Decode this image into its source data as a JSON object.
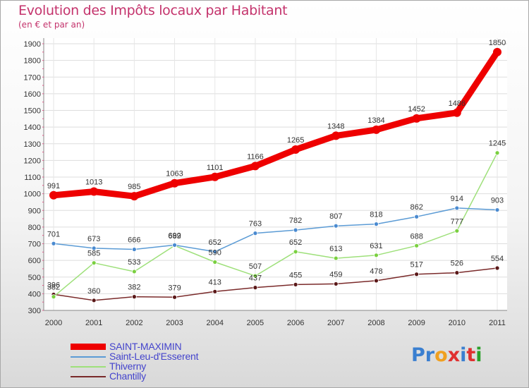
{
  "header": {
    "title": "Evolution des Impôts locaux par Habitant",
    "subtitle": "(en € et par an)"
  },
  "brand": {
    "letters": [
      "P",
      "r",
      "o",
      "x",
      "i",
      "t",
      "i"
    ],
    "colors": [
      "#3a7fd0",
      "#3a7fd0",
      "#f0a020",
      "#e03030",
      "#3a7fd0",
      "#e03030",
      "#2aa02a"
    ]
  },
  "chart_data": {
    "type": "line",
    "x": [
      "2000",
      "2001",
      "2002",
      "2003",
      "2004",
      "2005",
      "2006",
      "2007",
      "2008",
      "2009",
      "2010",
      "2011"
    ],
    "ylim": [
      300,
      1900
    ],
    "yticks": [
      "300",
      "400",
      "500",
      "600",
      "700",
      "800",
      "900",
      "1000",
      "1100",
      "1200",
      "1300",
      "1400",
      "1500",
      "1600",
      "1700",
      "1800",
      "1900"
    ],
    "grid": true,
    "legend_position": "bottom-left",
    "series": [
      {
        "name": "SAINT-MAXIMIN",
        "color": "#ee0000",
        "weight": "bold",
        "values": [
          991,
          1013,
          985,
          1063,
          1101,
          1166,
          1265,
          1348,
          1384,
          1452,
          1486,
          1850
        ],
        "labels": [
          "991",
          "1013",
          "985",
          "1063",
          "1101",
          "1166",
          "1265",
          "1348",
          "1384",
          "1452",
          "1486",
          "1850"
        ]
      },
      {
        "name": "Saint-Leu-d'Esserent",
        "color": "#5b9bd5",
        "weight": "normal",
        "marker": "#4a8ad0",
        "values": [
          701,
          673,
          666,
          692,
          652,
          763,
          782,
          807,
          818,
          862,
          914,
          903
        ],
        "labels": [
          "701",
          "673",
          "666",
          "692",
          "652",
          "763",
          "782",
          "807",
          "818",
          "862",
          "914",
          "903"
        ]
      },
      {
        "name": "Thiverny",
        "color": "#9ee07a",
        "weight": "normal",
        "marker": "#7ad040",
        "values": [
          382,
          585,
          533,
          689,
          590,
          507,
          652,
          613,
          631,
          688,
          777,
          1245
        ],
        "labels": [
          "382",
          "585",
          "533",
          "689",
          "590",
          "507",
          "652",
          "613",
          "631",
          "688",
          "777",
          "1245"
        ]
      },
      {
        "name": "Chantilly",
        "color": "#7a2a2a",
        "weight": "normal",
        "marker": "#5a1818",
        "values": [
          396,
          360,
          382,
          379,
          413,
          437,
          455,
          459,
          478,
          517,
          526,
          554
        ],
        "labels": [
          "396",
          "360",
          "382",
          "379",
          "413",
          "437",
          "455",
          "459",
          "478",
          "517",
          "526",
          "554"
        ]
      }
    ]
  }
}
